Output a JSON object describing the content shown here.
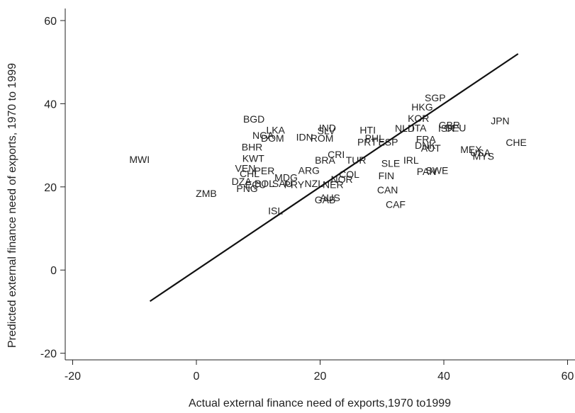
{
  "chart_data": {
    "type": "scatter",
    "x_label": "Actual external finance need of exports,1970 to1999",
    "y_label": "Predicted external finance need of exports, 1970 to 1999",
    "xlim": [
      -21.2,
      61.2
    ],
    "ylim": [
      -21.6,
      62.9
    ],
    "xticks": [
      -20,
      0,
      20,
      40,
      60
    ],
    "yticks": [
      -20,
      0,
      20,
      40,
      60
    ],
    "point_labels": [
      "MWI",
      "ZMB",
      "BGD",
      "NGA",
      "DOM",
      "LKA",
      "IND",
      "SLV",
      "ROM",
      "IDN",
      "BHR",
      "KWT",
      "VEN",
      "CHL",
      "DZA",
      "PNG",
      "ECU",
      "BOL",
      "SAU",
      "PRY",
      "MDG",
      "NZL",
      "NER",
      "ISL",
      "GAB",
      "AUS",
      "CRI",
      "BRA",
      "COL",
      "NOR",
      "TUR",
      "HTI",
      "FIN",
      "CAN",
      "CAF",
      "ESP",
      "PRT",
      "IRL",
      "SLE",
      "PAN",
      "SWE",
      "DNK",
      "AUT",
      "FRA",
      "ITA",
      "KOR",
      "HKG",
      "SGP",
      "GBR",
      "ISR",
      "DEU",
      "NLD",
      "JPN",
      "CHE",
      "MEX",
      "MYS",
      "USA",
      "PER",
      "ARG",
      "PHL"
    ],
    "x": [
      -9.2,
      1.6,
      9.3,
      10.8,
      12.3,
      12.8,
      21.2,
      21.0,
      20.3,
      17.5,
      9.0,
      9.2,
      7.9,
      8.6,
      7.3,
      8.2,
      9.6,
      11.0,
      13.9,
      15.8,
      14.5,
      19.0,
      22.1,
      12.8,
      20.8,
      21.6,
      22.6,
      20.8,
      24.7,
      23.5,
      25.8,
      27.7,
      30.7,
      30.9,
      32.2,
      31.0,
      27.6,
      34.7,
      31.4,
      37.2,
      38.9,
      37.0,
      37.9,
      37.1,
      36.0,
      35.9,
      36.5,
      38.6,
      40.9,
      40.4,
      41.9,
      33.7,
      49.1,
      51.7,
      44.4,
      46.4,
      45.9,
      11.0,
      18.2,
      28.8
    ],
    "values": [
      26.6,
      18.4,
      36.3,
      32.4,
      31.7,
      33.7,
      34.2,
      33.5,
      31.7,
      32.0,
      29.6,
      26.9,
      24.5,
      23.2,
      21.3,
      19.6,
      20.6,
      20.8,
      20.8,
      20.6,
      22.3,
      20.8,
      20.6,
      14.3,
      16.9,
      17.4,
      27.8,
      26.4,
      23.0,
      21.8,
      26.4,
      33.7,
      22.7,
      19.3,
      15.8,
      30.8,
      30.8,
      26.4,
      25.7,
      23.7,
      24.0,
      30.0,
      29.3,
      31.5,
      34.2,
      36.5,
      39.2,
      41.4,
      34.9,
      34.1,
      34.2,
      34.1,
      35.9,
      30.7,
      29.0,
      27.4,
      28.2,
      23.9,
      24.0,
      31.7
    ],
    "fit_line": {
      "x": [
        -7.5,
        52
      ],
      "values": [
        -7.5,
        52
      ]
    }
  }
}
